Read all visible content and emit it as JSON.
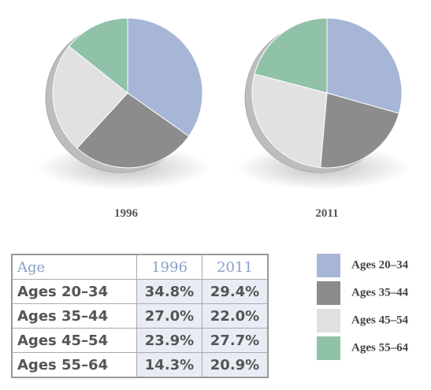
{
  "chart_data": [
    {
      "type": "pie",
      "title": "1996",
      "categories": [
        "Ages 20–34",
        "Ages 35–44",
        "Ages 45–54",
        "Ages 55–64"
      ],
      "values": [
        34.8,
        27.0,
        23.9,
        14.3
      ],
      "colors": [
        "#a7b6d6",
        "#8c8c8c",
        "#e1e1e1",
        "#8fc2a8"
      ]
    },
    {
      "type": "pie",
      "title": "2011",
      "categories": [
        "Ages 20–34",
        "Ages 35–44",
        "Ages 45–54",
        "Ages 55–64"
      ],
      "values": [
        29.4,
        22.0,
        27.7,
        20.9
      ],
      "colors": [
        "#a7b6d6",
        "#8c8c8c",
        "#e1e1e1",
        "#8fc2a8"
      ]
    }
  ],
  "table": {
    "header": [
      "Age",
      "1996",
      "2011"
    ],
    "rows": [
      [
        "Ages 20–34",
        "34.8%",
        "29.4%"
      ],
      [
        "Ages 35–44",
        "27.0%",
        "22.0%"
      ],
      [
        "Ages 45–54",
        "23.9%",
        "27.7%"
      ],
      [
        "Ages 55–64",
        "14.3%",
        "20.9%"
      ]
    ]
  }
}
